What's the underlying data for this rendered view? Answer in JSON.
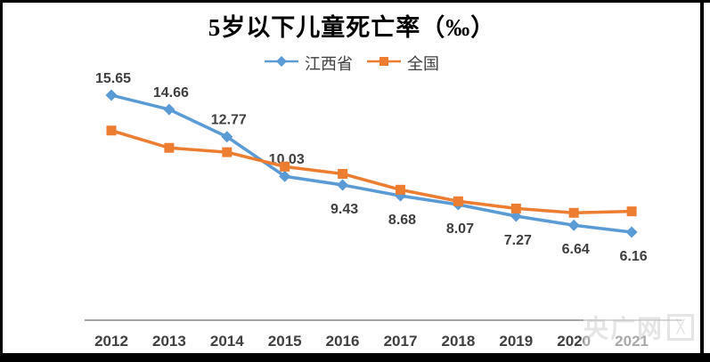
{
  "chart_data": {
    "type": "line",
    "title": "5岁以下儿童死亡率（‰）",
    "categories": [
      "2012",
      "2013",
      "2014",
      "2015",
      "2016",
      "2017",
      "2018",
      "2019",
      "2020",
      "2021"
    ],
    "series": [
      {
        "name": "江西省",
        "color": "#5B9BD5",
        "marker": "diamond",
        "values": [
          15.65,
          14.66,
          12.77,
          10.03,
          9.43,
          8.68,
          8.07,
          7.27,
          6.64,
          6.16
        ],
        "data_labels": [
          "15.65",
          "14.66",
          "12.77",
          "10.03",
          "9.43",
          "8.68",
          "8.07",
          "7.27",
          "6.64",
          "6.16"
        ],
        "label_side": [
          "above",
          "above",
          "above",
          "above",
          "below",
          "below",
          "below",
          "below",
          "below",
          "below"
        ]
      },
      {
        "name": "全国",
        "color": "#ED7D31",
        "marker": "square",
        "values": [
          13.2,
          12.0,
          11.7,
          10.7,
          10.2,
          9.1,
          8.3,
          7.8,
          7.5,
          7.6
        ],
        "data_labels": [],
        "label_side": []
      }
    ],
    "ylim": [
      0,
      16
    ],
    "grid": false,
    "legend_position": "top",
    "axis_line_color": "#A6A6A6",
    "data_label_color": "#3F3F3F",
    "tick_label_color": "#404040"
  },
  "watermark": {
    "text": "央广网"
  }
}
